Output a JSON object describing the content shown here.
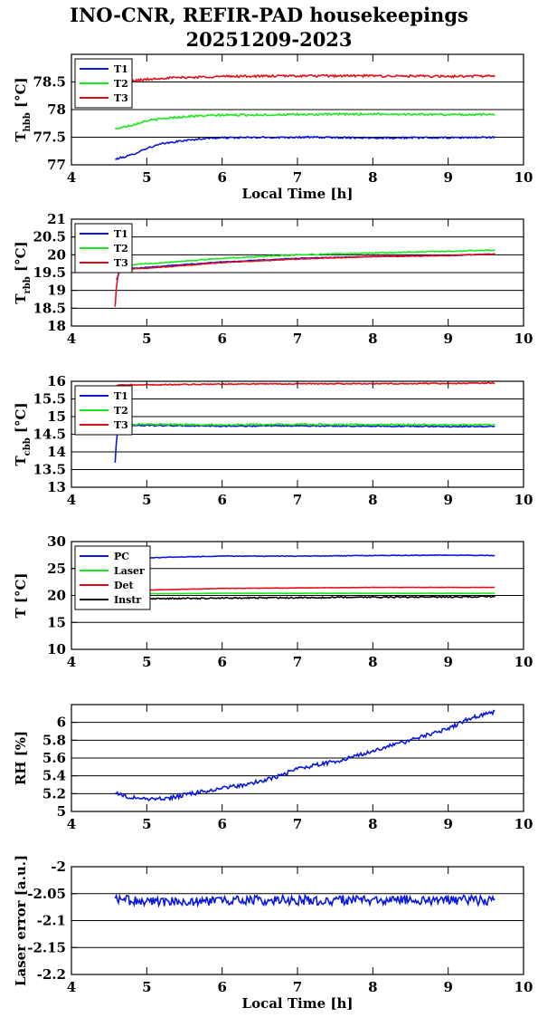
{
  "page": {
    "title_line1": "INO-CNR, REFIR-PAD housekeepings",
    "title_line2": "20251209-2023"
  },
  "colors": {
    "blue": "#0a18d8",
    "green": "#1ee61e",
    "red": "#e0101a",
    "black": "#000000"
  },
  "chart_data": [
    {
      "type": "line",
      "ylabel_main": "T",
      "ylabel_sub": "hbb",
      "ylabel_unit": "[°C]",
      "xlabel": "Local Time [h]",
      "xlim": [
        4,
        10
      ],
      "ylim": [
        77,
        79
      ],
      "xticks": [
        4,
        5,
        6,
        7,
        8,
        9,
        10
      ],
      "yticks": [
        77,
        77.5,
        78,
        78.5
      ],
      "ytick_labels": [
        "77",
        "77.5",
        "78",
        "78.5"
      ],
      "grid": "horizontal",
      "legend_position": "top-left",
      "series": [
        {
          "name": "T1",
          "color": "blue",
          "x": [
            4.58,
            4.8,
            5.0,
            5.2,
            5.5,
            5.8,
            6.0,
            7.0,
            8.0,
            9.0,
            9.62
          ],
          "y": [
            77.1,
            77.18,
            77.3,
            77.38,
            77.44,
            77.48,
            77.49,
            77.5,
            77.49,
            77.49,
            77.5
          ],
          "noise": 0.015
        },
        {
          "name": "T2",
          "color": "green",
          "x": [
            4.58,
            4.8,
            5.0,
            5.3,
            5.6,
            6.0,
            7.0,
            8.0,
            9.0,
            9.62
          ],
          "y": [
            77.65,
            77.72,
            77.8,
            77.85,
            77.88,
            77.9,
            77.91,
            77.92,
            77.91,
            77.91
          ],
          "noise": 0.018
        },
        {
          "name": "T3",
          "color": "red",
          "x": [
            4.58,
            4.8,
            5.2,
            6.0,
            7.0,
            8.0,
            9.0,
            9.62
          ],
          "y": [
            78.45,
            78.52,
            78.57,
            78.6,
            78.61,
            78.61,
            78.6,
            78.61
          ],
          "noise": 0.02
        }
      ]
    },
    {
      "type": "line",
      "ylabel_main": "T",
      "ylabel_sub": "rbb",
      "ylabel_unit": "[°C]",
      "xlim": [
        4,
        10
      ],
      "ylim": [
        18,
        21
      ],
      "xticks": [
        4,
        5,
        6,
        7,
        8,
        9,
        10
      ],
      "yticks": [
        18,
        18.5,
        19,
        19.5,
        20,
        20.5,
        21
      ],
      "ytick_labels": [
        "18",
        "18.5",
        "19",
        "19.5",
        "20",
        "20.5",
        "21"
      ],
      "grid": "horizontal",
      "legend_position": "top-left",
      "series": [
        {
          "name": "T1",
          "color": "blue",
          "x": [
            4.6,
            4.63,
            4.7,
            5.0,
            6.0,
            7.0,
            8.0,
            9.0,
            9.62
          ],
          "y": [
            19.3,
            19.5,
            19.6,
            19.65,
            19.8,
            19.9,
            19.95,
            19.98,
            20.02
          ],
          "noise": 0.01
        },
        {
          "name": "T2",
          "color": "green",
          "x": [
            4.6,
            4.65,
            4.7,
            5.0,
            6.0,
            7.0,
            8.0,
            9.0,
            9.62
          ],
          "y": [
            19.5,
            19.65,
            19.7,
            19.75,
            19.9,
            20.0,
            20.05,
            20.1,
            20.13
          ],
          "noise": 0.015
        },
        {
          "name": "T3",
          "color": "red",
          "x": [
            4.58,
            4.6,
            4.63,
            4.7,
            5.0,
            6.0,
            7.0,
            8.0,
            9.0,
            9.62
          ],
          "y": [
            18.55,
            19.2,
            19.5,
            19.6,
            19.62,
            19.78,
            19.88,
            19.95,
            19.98,
            20.02
          ],
          "noise": 0.01
        }
      ]
    },
    {
      "type": "line",
      "ylabel_main": "T",
      "ylabel_sub": "cbb",
      "ylabel_unit": "[°C]",
      "xlim": [
        4,
        10
      ],
      "ylim": [
        13,
        16
      ],
      "xticks": [
        4,
        5,
        6,
        7,
        8,
        9,
        10
      ],
      "yticks": [
        13,
        13.5,
        14,
        14.5,
        15,
        15.5,
        16
      ],
      "ytick_labels": [
        "13",
        "13.5",
        "14",
        "14.5",
        "15",
        "15.5",
        "16"
      ],
      "grid": "horizontal",
      "legend_position": "top-left",
      "series": [
        {
          "name": "T1",
          "color": "blue",
          "x": [
            4.58,
            4.6,
            4.62,
            4.7,
            5.0,
            6.0,
            7.0,
            8.0,
            9.0,
            9.62
          ],
          "y": [
            13.7,
            14.4,
            14.7,
            14.75,
            14.75,
            14.73,
            14.74,
            14.73,
            14.72,
            14.72
          ],
          "noise": 0.015
        },
        {
          "name": "T2",
          "color": "green",
          "x": [
            4.6,
            4.65,
            5.0,
            6.0,
            7.0,
            8.0,
            9.0,
            9.62
          ],
          "y": [
            14.7,
            14.78,
            14.78,
            14.77,
            14.78,
            14.77,
            14.77,
            14.77
          ],
          "noise": 0.02
        },
        {
          "name": "T3",
          "color": "red",
          "x": [
            4.6,
            4.7,
            5.0,
            6.0,
            7.0,
            8.0,
            9.0,
            9.62
          ],
          "y": [
            15.88,
            15.9,
            15.9,
            15.92,
            15.93,
            15.93,
            15.94,
            15.95
          ],
          "noise": 0.015
        }
      ]
    },
    {
      "type": "line",
      "ylabel_main": "T [°C]",
      "xlim": [
        4,
        10
      ],
      "ylim": [
        10,
        30
      ],
      "xticks": [
        4,
        5,
        6,
        7,
        8,
        9,
        10
      ],
      "yticks": [
        10,
        15,
        20,
        25,
        30
      ],
      "ytick_labels": [
        "10",
        "15",
        "20",
        "25",
        "30"
      ],
      "grid": "horizontal",
      "legend_position": "top-left",
      "series": [
        {
          "name": "PC",
          "color": "blue",
          "x": [
            4.6,
            4.8,
            5.0,
            6.0,
            7.0,
            8.0,
            9.0,
            9.62
          ],
          "y": [
            26.3,
            26.7,
            27.0,
            27.3,
            27.3,
            27.4,
            27.5,
            27.4
          ],
          "noise": 0.06
        },
        {
          "name": "Laser",
          "color": "green",
          "x": [
            4.6,
            5.0,
            6.0,
            7.0,
            8.0,
            9.0,
            9.62
          ],
          "y": [
            20.2,
            20.3,
            20.4,
            20.4,
            20.4,
            20.4,
            20.4
          ],
          "noise": 0.02
        },
        {
          "name": "Det",
          "color": "red",
          "x": [
            4.6,
            5.0,
            6.0,
            7.0,
            8.0,
            9.0,
            9.62
          ],
          "y": [
            20.6,
            21.0,
            21.3,
            21.4,
            21.5,
            21.5,
            21.5
          ],
          "noise": 0.03
        },
        {
          "name": "Instr",
          "color": "black",
          "x": [
            4.6,
            5.0,
            6.0,
            7.0,
            8.0,
            9.0,
            9.62
          ],
          "y": [
            19.2,
            19.4,
            19.5,
            19.6,
            19.7,
            19.7,
            19.8
          ],
          "noise": 0.12
        }
      ]
    },
    {
      "type": "line",
      "ylabel_main": "RH [%]",
      "xlim": [
        4,
        10
      ],
      "ylim": [
        5,
        6.2
      ],
      "xticks": [
        4,
        5,
        6,
        7,
        8,
        9,
        10
      ],
      "yticks": [
        5,
        5.2,
        5.4,
        5.6,
        5.8,
        6
      ],
      "ytick_labels": [
        "5",
        "5.2",
        "5.4",
        "5.6",
        "5.8",
        "6"
      ],
      "grid": "horizontal",
      "legend_position": "none",
      "series": [
        {
          "color": "blue",
          "x": [
            4.58,
            4.7,
            5.0,
            5.3,
            5.6,
            6.0,
            6.3,
            6.7,
            7.0,
            7.5,
            8.0,
            8.5,
            9.0,
            9.3,
            9.62
          ],
          "y": [
            5.22,
            5.17,
            5.14,
            5.15,
            5.2,
            5.26,
            5.3,
            5.38,
            5.48,
            5.56,
            5.68,
            5.8,
            5.93,
            6.05,
            6.12
          ],
          "noise": 0.022
        }
      ]
    },
    {
      "type": "line",
      "ylabel_main": "Laser error [a.u.]",
      "xlabel": "Local Time [h]",
      "xlim": [
        4,
        10
      ],
      "ylim": [
        -2.2,
        -2.0
      ],
      "xticks": [
        4,
        5,
        6,
        7,
        8,
        9,
        10
      ],
      "yticks": [
        -2.2,
        -2.15,
        -2.1,
        -2.05,
        -2.0
      ],
      "ytick_labels": [
        "-2.2",
        "-2.15",
        "-2.1",
        "-2.05",
        "-2"
      ],
      "grid": "horizontal",
      "legend_position": "none",
      "series": [
        {
          "color": "blue",
          "x": [
            4.58,
            5.0,
            6.0,
            7.0,
            8.0,
            9.0,
            9.62
          ],
          "y": [
            -2.06,
            -2.065,
            -2.063,
            -2.062,
            -2.062,
            -2.062,
            -2.062
          ],
          "noise": 0.009
        }
      ]
    }
  ]
}
